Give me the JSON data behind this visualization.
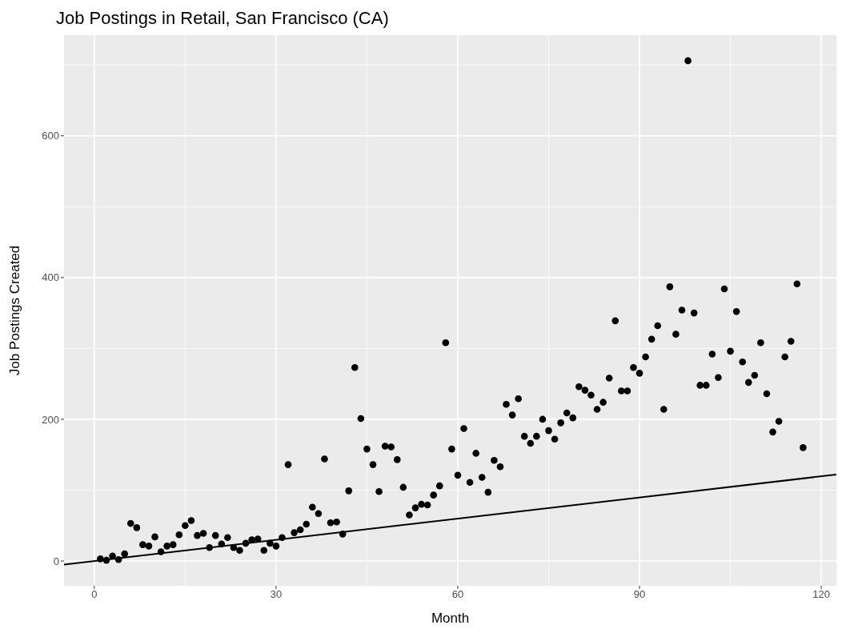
{
  "chart_data": {
    "type": "scatter",
    "title": "Job Postings in Retail, San Francisco (CA)",
    "xlabel": "Month",
    "ylabel": "Job Postings Created",
    "xlim": [
      -5,
      122.5
    ],
    "ylim": [
      -35,
      742
    ],
    "xticks": [
      0,
      30,
      60,
      90,
      120
    ],
    "yticks": [
      0,
      200,
      400,
      600
    ],
    "grid": true,
    "series": [
      {
        "marker": "circle",
        "color": "#000000",
        "x": [
          1,
          2,
          3,
          4,
          5,
          6,
          7,
          8,
          9,
          10,
          11,
          12,
          13,
          14,
          15,
          16,
          17,
          18,
          19,
          20,
          21,
          22,
          23,
          24,
          25,
          26,
          27,
          28,
          29,
          30,
          31,
          32,
          33,
          34,
          35,
          36,
          37,
          38,
          39,
          40,
          41,
          42,
          43,
          44,
          45,
          46,
          47,
          48,
          49,
          50,
          51,
          52,
          53,
          54,
          55,
          56,
          57,
          58,
          59,
          60,
          61,
          62,
          63,
          64,
          65,
          66,
          67,
          68,
          69,
          70,
          71,
          72,
          73,
          74,
          75,
          76,
          77,
          78,
          79,
          80,
          81,
          82,
          83,
          84,
          85,
          86,
          87,
          88,
          89,
          90,
          91,
          92,
          93,
          94,
          95,
          96,
          97,
          98,
          99,
          100,
          101,
          102,
          103,
          104,
          105,
          106,
          107,
          108,
          109,
          110,
          111,
          112,
          113,
          114,
          115,
          116,
          117
        ],
        "values": [
          3,
          1,
          7,
          2,
          10,
          53,
          47,
          23,
          21,
          34,
          13,
          21,
          23,
          37,
          50,
          57,
          36,
          39,
          19,
          36,
          24,
          33,
          19,
          15,
          25,
          30,
          31,
          15,
          25,
          21,
          33,
          136,
          40,
          44,
          52,
          76,
          67,
          144,
          54,
          55,
          38,
          99,
          273,
          201,
          158,
          136,
          98,
          162,
          161,
          143,
          104,
          65,
          75,
          80,
          79,
          93,
          106,
          308,
          158,
          121,
          187,
          111,
          152,
          118,
          97,
          142,
          133,
          221,
          206,
          229,
          176,
          166,
          176,
          200,
          184,
          172,
          195,
          209,
          202,
          246,
          241,
          234,
          214,
          224,
          258,
          339,
          240,
          240,
          273,
          265,
          288,
          313,
          332,
          214,
          387,
          320,
          354,
          706,
          350,
          248,
          248,
          292,
          259,
          384,
          296,
          352,
          281,
          252,
          262,
          308,
          236,
          182,
          197,
          288,
          310,
          391,
          160
        ]
      },
      {
        "type": "line",
        "color": "#000000",
        "x": [
          -5,
          122.5
        ],
        "values": [
          -5,
          122
        ]
      }
    ]
  }
}
